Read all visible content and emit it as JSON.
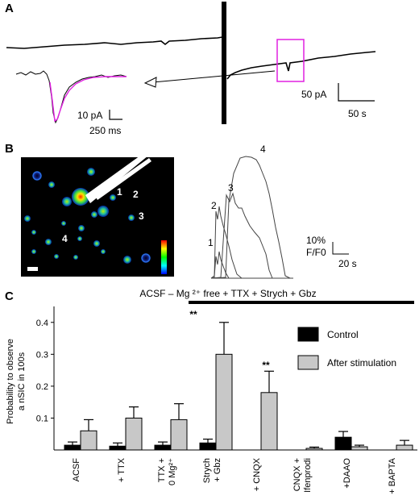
{
  "panels": {
    "a": "A",
    "b": "B",
    "c": "C"
  },
  "panel_a": {
    "scale_main": {
      "current": "50 pA",
      "time": "50 s"
    },
    "scale_inset": {
      "current": "10 pA",
      "time": "250 ms"
    }
  },
  "panel_b": {
    "cell_labels": [
      "1",
      "2",
      "3",
      "4"
    ],
    "trace_labels": [
      "1",
      "2",
      "3",
      "4"
    ],
    "scale": {
      "amplitude_line1": "10%",
      "amplitude_line2": "F/F0",
      "time": "20 s"
    }
  },
  "colors": {
    "control": "#000000",
    "after": "#c8c8c8",
    "box": "#e020e0",
    "fit": "#e020e0"
  },
  "chart_data": {
    "type": "bar",
    "ylabel_line1": "Probability to observe",
    "ylabel_line2": "a nSIC in 100s",
    "ylim": [
      0,
      0.45
    ],
    "yticks": [
      "0.1",
      "0.2",
      "0.3",
      "0.4"
    ],
    "ytick_values": [
      0.1,
      0.2,
      0.3,
      0.4
    ],
    "categories": [
      [
        "ACSF"
      ],
      [
        "+ TTX"
      ],
      [
        "TTX +",
        "0 Mg²⁺"
      ],
      [
        "Strych",
        "+ Gbz"
      ],
      [
        "+ CNQX"
      ],
      [
        "CNQX +",
        "Ifenprodi"
      ],
      [
        "+DAAO"
      ],
      [
        "+ BAPTA"
      ]
    ],
    "series": [
      {
        "name": "Control",
        "values": [
          0.015,
          0.012,
          0.015,
          0.022,
          0,
          0,
          0.04,
          0
        ],
        "errors": [
          0.01,
          0.01,
          0.01,
          0.012,
          0,
          0,
          0.018,
          0
        ]
      },
      {
        "name": "After stimulation",
        "values": [
          0.06,
          0.1,
          0.095,
          0.3,
          0.18,
          0.005,
          0.01,
          0.015
        ],
        "errors": [
          0.035,
          0.035,
          0.05,
          0.1,
          0.067,
          0.004,
          0.005,
          0.015
        ]
      }
    ],
    "annotation_bar": "ACSF – Mg ²⁺ free + TTX + Strych + Gbz",
    "significance": [
      "**",
      "**"
    ],
    "legend": [
      "Control",
      "After stimulation"
    ],
    "legend_placement": "right"
  }
}
